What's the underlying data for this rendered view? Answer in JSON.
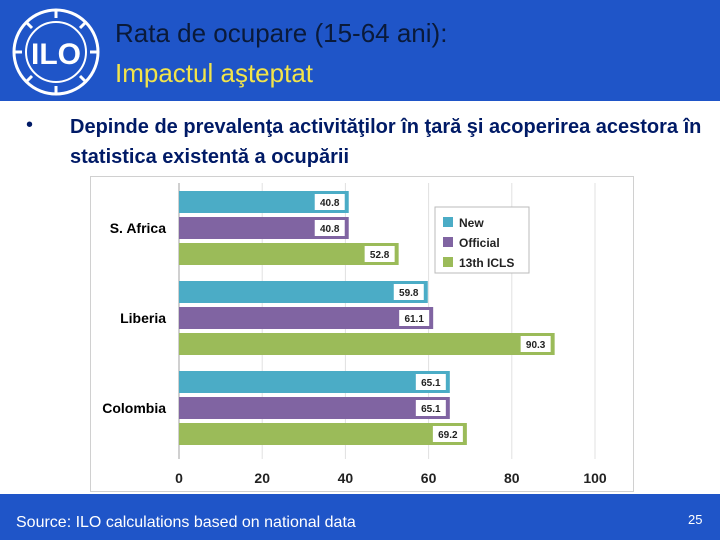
{
  "slide": {
    "title_line1": "Rata de ocupare (15-64 ani):",
    "title_line2": "Impactul aşteptat",
    "bullet": "Depinde de prevalenţa activităţilor în ţară şi acoperirea acestora în statistica existentă a ocupării",
    "source": "Source: ILO calculations based on national data",
    "page_number": "25"
  },
  "colors": {
    "header_bg": "#1f55c8",
    "title2": "#f2e44a",
    "New": "#4bacc6",
    "Official": "#8064a2",
    "13th ICLS": "#9bbb59"
  },
  "chart_data": {
    "type": "bar",
    "orientation": "horizontal",
    "categories": [
      "S. Africa",
      "Liberia",
      "Colombia"
    ],
    "series": [
      {
        "name": "New",
        "values": [
          40.8,
          59.8,
          65.1
        ]
      },
      {
        "name": "Official",
        "values": [
          40.8,
          61.1,
          65.1
        ]
      },
      {
        "name": "13th ICLS",
        "values": [
          52.8,
          90.3,
          69.2
        ]
      }
    ],
    "x_ticks": [
      0,
      20,
      40,
      60,
      80,
      100
    ],
    "xlim": [
      0,
      100
    ],
    "legend_position": "top-right",
    "grid": true
  }
}
